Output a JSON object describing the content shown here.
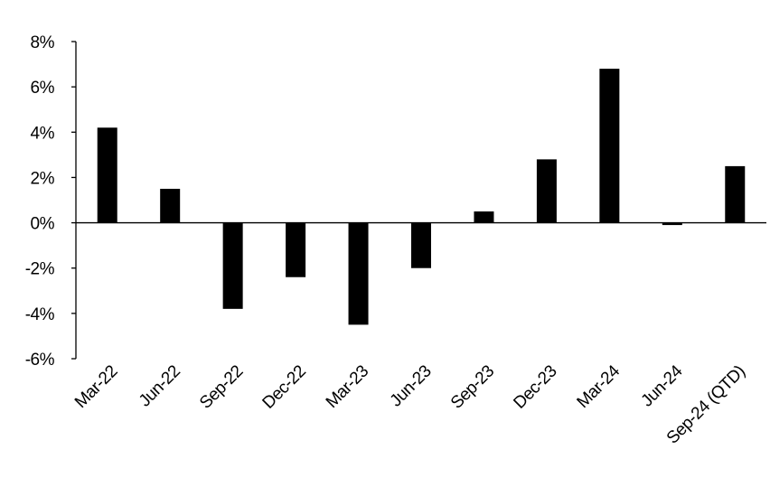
{
  "chart_data": {
    "type": "bar",
    "title": "",
    "xlabel": "",
    "ylabel": "",
    "categories": [
      "Mar-22",
      "Jun-22",
      "Sep-22",
      "Dec-22",
      "Mar-23",
      "Jun-23",
      "Sep-23",
      "Dec-23",
      "Mar-24",
      "Jun-24",
      "Sep-24 (QTD)"
    ],
    "values": [
      4.2,
      1.5,
      -3.8,
      -2.4,
      -4.5,
      -2.0,
      0.5,
      2.8,
      6.8,
      -0.1,
      2.5
    ],
    "unit": "%",
    "ylim": [
      -6,
      8
    ],
    "yticks": [
      -6,
      -4,
      -2,
      0,
      2,
      4,
      6,
      8
    ],
    "ytick_labels": [
      "-6%",
      "-4%",
      "-2%",
      "0%",
      "2%",
      "4%",
      "6%",
      "8%"
    ],
    "grid": false,
    "legend": "none",
    "colors": {
      "bar": "#000000",
      "axis": "#000000"
    }
  }
}
